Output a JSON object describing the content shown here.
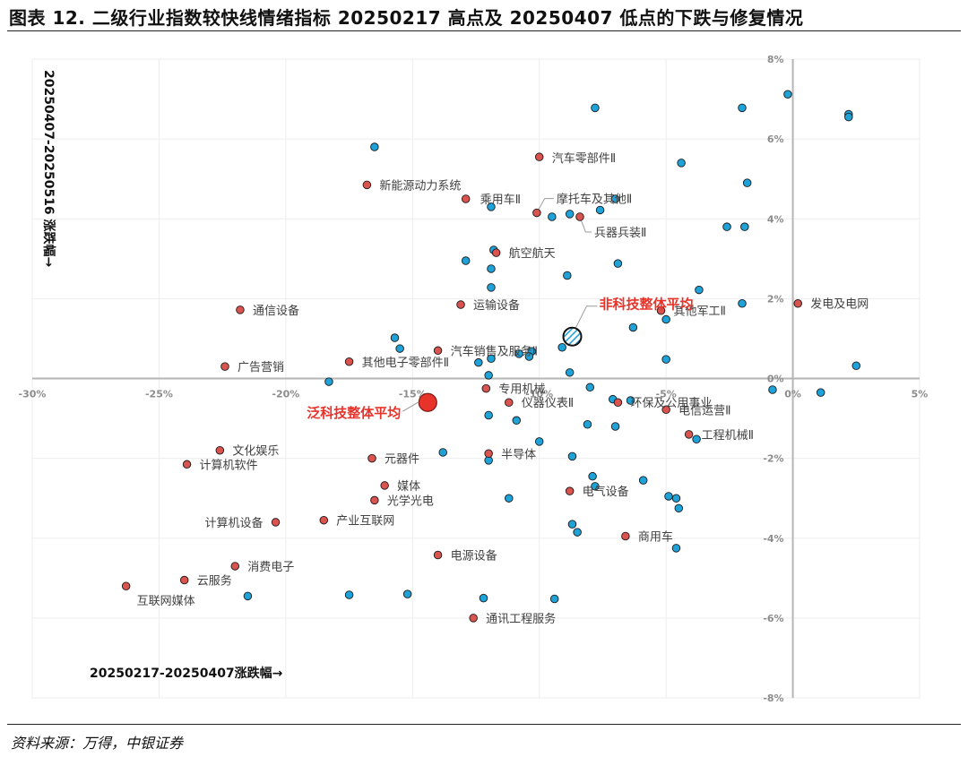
{
  "header": {
    "title": "图表 12. 二级行业指数较快线情绪指标 20250217 高点及 20250407 低点的下跌与修复情况"
  },
  "footer": {
    "source": "资料来源：万得，中银证券"
  },
  "colors": {
    "tech": "#d9534f",
    "nontech": "#1fa2d8",
    "avg_tech": "#e8332a",
    "edge": "#1a1a1a"
  },
  "chart_data": {
    "type": "scatter",
    "xlabel": "20250217-20250407涨跌幅→",
    "ylabel": "20250407-20250516 涨跌幅→",
    "xlim": [
      -30,
      5
    ],
    "ylim": [
      -8,
      8
    ],
    "x_ticks": [
      "-30%",
      "-25%",
      "-20%",
      "-15%",
      "-10%",
      "-5%",
      "0%",
      "5%"
    ],
    "y_ticks": [
      "-8%",
      "-6%",
      "-4%",
      "-2%",
      "0%",
      "2%",
      "4%",
      "6%",
      "8%"
    ],
    "averages": [
      {
        "label": "泛科技整体平均",
        "x": -14.4,
        "y": -0.6
      },
      {
        "label": "非科技整体平均",
        "x": -8.7,
        "y": 1.05
      }
    ],
    "tech_points": [
      {
        "label": "汽车零部件Ⅱ",
        "x": -10.0,
        "y": 5.55
      },
      {
        "label": "新能源动力系统",
        "x": -16.8,
        "y": 4.85
      },
      {
        "label": "乘用车Ⅱ",
        "x": -12.9,
        "y": 4.5
      },
      {
        "label": "摩托车及其他Ⅱ",
        "x": -10.1,
        "y": 4.15
      },
      {
        "label": "兵器兵装Ⅱ",
        "x": -8.4,
        "y": 4.05
      },
      {
        "label": "航空航天",
        "x": -11.7,
        "y": 3.15
      },
      {
        "label": "运输设备",
        "x": -13.1,
        "y": 1.85
      },
      {
        "label": "通信设备",
        "x": -21.8,
        "y": 1.72
      },
      {
        "label": "汽车销售及服务Ⅱ",
        "x": -14.0,
        "y": 0.7
      },
      {
        "label": "其他电子零部件Ⅱ",
        "x": -17.5,
        "y": 0.42
      },
      {
        "label": "广告营销",
        "x": -22.4,
        "y": 0.3
      },
      {
        "label": "发电及电网",
        "x": 0.2,
        "y": 1.88
      },
      {
        "label": "其他军工Ⅱ",
        "x": -5.2,
        "y": 1.7
      },
      {
        "label": "专用机械",
        "x": -12.1,
        "y": -0.25
      },
      {
        "label": "仪器仪表Ⅱ",
        "x": -11.2,
        "y": -0.6
      },
      {
        "label": "环保及公用事业",
        "x": -6.9,
        "y": -0.6
      },
      {
        "label": "电信运营Ⅱ",
        "x": -5.0,
        "y": -0.78
      },
      {
        "label": "工程机械Ⅱ",
        "x": -4.1,
        "y": -1.4
      },
      {
        "label": "半导体",
        "x": -12.0,
        "y": -1.88
      },
      {
        "label": "文化娱乐",
        "x": -22.6,
        "y": -1.8
      },
      {
        "label": "计算机软件",
        "x": -23.9,
        "y": -2.15
      },
      {
        "label": "元器件",
        "x": -16.6,
        "y": -2.0
      },
      {
        "label": "媒体",
        "x": -16.1,
        "y": -2.68
      },
      {
        "label": "光学光电",
        "x": -16.5,
        "y": -3.05
      },
      {
        "label": "电气设备",
        "x": -8.8,
        "y": -2.82
      },
      {
        "label": "计算机设备",
        "x": -20.4,
        "y": -3.6
      },
      {
        "label": "产业互联网",
        "x": -18.5,
        "y": -3.55
      },
      {
        "label": "商用车",
        "x": -6.6,
        "y": -3.95
      },
      {
        "label": "电源设备",
        "x": -14.0,
        "y": -4.42
      },
      {
        "label": "消费电子",
        "x": -22.0,
        "y": -4.7
      },
      {
        "label": "云服务",
        "x": -24.0,
        "y": -5.05
      },
      {
        "label": "互联网媒体",
        "x": -26.3,
        "y": -5.2
      },
      {
        "label": "通讯工程服务",
        "x": -12.6,
        "y": -6.0
      }
    ],
    "nontech_points": [
      [
        -7.8,
        6.78
      ],
      [
        -16.5,
        5.8
      ],
      [
        -0.2,
        7.12
      ],
      [
        2.2,
        6.62
      ],
      [
        2.2,
        6.55
      ],
      [
        -2.0,
        6.78
      ],
      [
        -4.4,
        5.4
      ],
      [
        -1.8,
        4.9
      ],
      [
        -7.0,
        4.5
      ],
      [
        -11.9,
        4.3
      ],
      [
        -7.6,
        4.22
      ],
      [
        -8.8,
        4.12
      ],
      [
        -9.5,
        4.05
      ],
      [
        -2.6,
        3.8
      ],
      [
        -1.9,
        3.8
      ],
      [
        -11.8,
        3.22
      ],
      [
        -12.9,
        2.95
      ],
      [
        -6.9,
        2.88
      ],
      [
        -11.9,
        2.75
      ],
      [
        -8.9,
        2.58
      ],
      [
        -11.9,
        2.28
      ],
      [
        -3.7,
        2.22
      ],
      [
        -2.0,
        1.88
      ],
      [
        -5.0,
        1.48
      ],
      [
        -6.3,
        1.28
      ],
      [
        -15.7,
        1.02
      ],
      [
        -15.5,
        0.75
      ],
      [
        -9.1,
        0.78
      ],
      [
        -10.3,
        0.68
      ],
      [
        -10.8,
        0.62
      ],
      [
        -11.9,
        0.5
      ],
      [
        -10.4,
        0.55
      ],
      [
        -12.4,
        0.4
      ],
      [
        -5.0,
        0.48
      ],
      [
        2.5,
        0.32
      ],
      [
        -8.8,
        0.15
      ],
      [
        -12.0,
        0.08
      ],
      [
        -18.3,
        -0.08
      ],
      [
        -8.0,
        -0.22
      ],
      [
        -0.8,
        -0.28
      ],
      [
        1.1,
        -0.35
      ],
      [
        -7.1,
        -0.52
      ],
      [
        -6.4,
        -0.55
      ],
      [
        -12.0,
        -0.92
      ],
      [
        -10.9,
        -1.05
      ],
      [
        -8.1,
        -1.15
      ],
      [
        -7.0,
        -1.2
      ],
      [
        -3.8,
        -1.52
      ],
      [
        -10.0,
        -1.58
      ],
      [
        -13.8,
        -1.85
      ],
      [
        -12.0,
        -2.05
      ],
      [
        -8.7,
        -1.95
      ],
      [
        -7.9,
        -2.45
      ],
      [
        -7.8,
        -2.7
      ],
      [
        -5.9,
        -2.55
      ],
      [
        -4.9,
        -2.95
      ],
      [
        -4.6,
        -3.0
      ],
      [
        -4.5,
        -3.25
      ],
      [
        -11.2,
        -3.0
      ],
      [
        -8.7,
        -3.65
      ],
      [
        -8.5,
        -3.85
      ],
      [
        -4.6,
        -4.25
      ],
      [
        -21.5,
        -5.45
      ],
      [
        -17.5,
        -5.42
      ],
      [
        -15.2,
        -5.4
      ],
      [
        -12.2,
        -5.5
      ],
      [
        -9.4,
        -5.52
      ]
    ]
  }
}
